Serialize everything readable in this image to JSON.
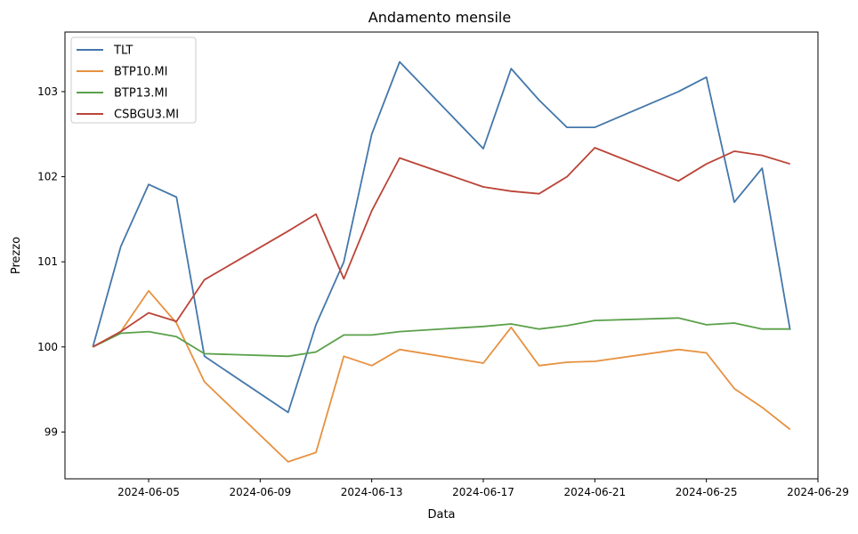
{
  "chart_data": {
    "type": "line",
    "title": "Andamento mensile",
    "xlabel": "Data",
    "ylabel": "Prezzo",
    "xlim": [
      "2024-06-02",
      "2024-06-29"
    ],
    "ylim": [
      98.45,
      103.7
    ],
    "xticks": [
      "2024-06-05",
      "2024-06-09",
      "2024-06-13",
      "2024-06-17",
      "2024-06-21",
      "2024-06-25",
      "2024-06-29"
    ],
    "yticks": [
      99,
      100,
      101,
      102,
      103
    ],
    "grid": false,
    "legend_position": "top-left",
    "x": [
      "2024-06-03",
      "2024-06-04",
      "2024-06-05",
      "2024-06-06",
      "2024-06-07",
      "2024-06-10",
      "2024-06-11",
      "2024-06-12",
      "2024-06-13",
      "2024-06-14",
      "2024-06-17",
      "2024-06-18",
      "2024-06-19",
      "2024-06-20",
      "2024-06-21",
      "2024-06-24",
      "2024-06-25",
      "2024-06-26",
      "2024-06-27",
      "2024-06-28"
    ],
    "series": [
      {
        "name": "TLT",
        "color": "#4477aa",
        "values": [
          100.0,
          101.18,
          101.91,
          101.76,
          99.89,
          99.23,
          100.26,
          101.0,
          102.5,
          103.35,
          102.33,
          103.27,
          102.9,
          102.58,
          102.58,
          103.0,
          103.17,
          101.7,
          102.1,
          100.2
        ]
      },
      {
        "name": "BTP10.MI",
        "color": "#e69140",
        "values": [
          100.0,
          100.18,
          100.66,
          100.28,
          99.59,
          98.65,
          98.76,
          99.89,
          99.78,
          99.97,
          99.81,
          100.23,
          99.78,
          99.82,
          99.83,
          99.97,
          99.93,
          99.51,
          99.29,
          99.03
        ]
      },
      {
        "name": "BTP13.MI",
        "color": "#5aa04a",
        "values": [
          100.0,
          100.16,
          100.18,
          100.12,
          99.92,
          99.89,
          99.94,
          100.14,
          100.14,
          100.18,
          100.24,
          100.27,
          100.21,
          100.25,
          100.31,
          100.34,
          100.26,
          100.28,
          100.21,
          100.21
        ]
      },
      {
        "name": "CSBGU3.MI",
        "color": "#bb4438",
        "values": [
          100.0,
          100.18,
          100.4,
          100.3,
          100.79,
          101.36,
          101.56,
          100.8,
          101.6,
          102.22,
          101.88,
          101.83,
          101.8,
          102.0,
          102.34,
          101.95,
          102.15,
          102.3,
          102.25,
          102.15
        ]
      }
    ]
  }
}
